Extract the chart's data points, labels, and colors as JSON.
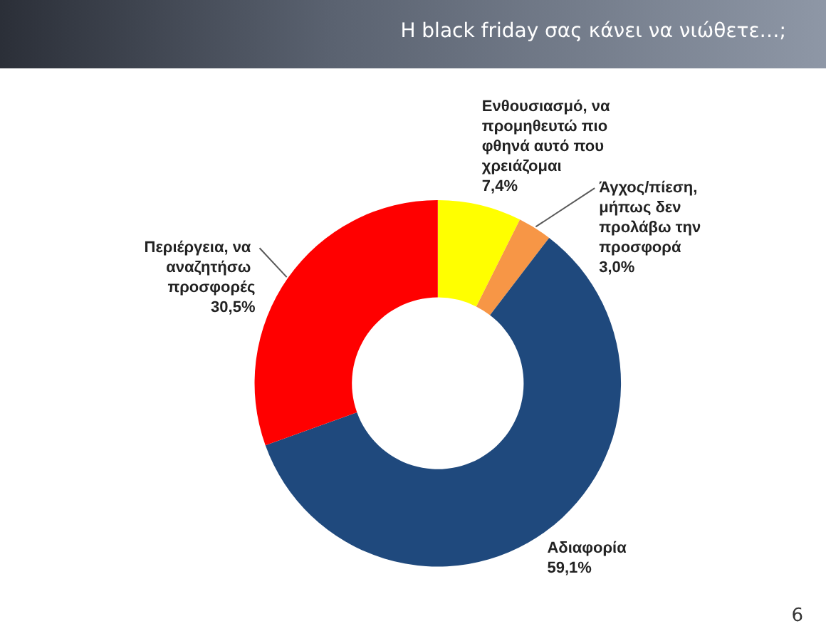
{
  "chart_data": {
    "type": "donut",
    "title": "Η black friday σας κάνει να νιώθετε…;",
    "categories": [
      "Ενθουσιασμό, να προμηθευτώ πιο φθηνά αυτό που χρειάζομαι",
      "Άγχος/πίεση, μήπως δεν προλάβω την προσφορά",
      "Αδιαφορία",
      "Περιέργεια, να αναζητήσω προσφορές"
    ],
    "values": [
      7.4,
      3.0,
      59.1,
      30.5
    ],
    "value_labels": [
      "7,4%",
      "3,0%",
      "59,1%",
      "30,5%"
    ],
    "colors": [
      "#ffff00",
      "#f79646",
      "#1f497d",
      "#ff0000"
    ],
    "legend": false,
    "annotations": [
      "6"
    ]
  }
}
